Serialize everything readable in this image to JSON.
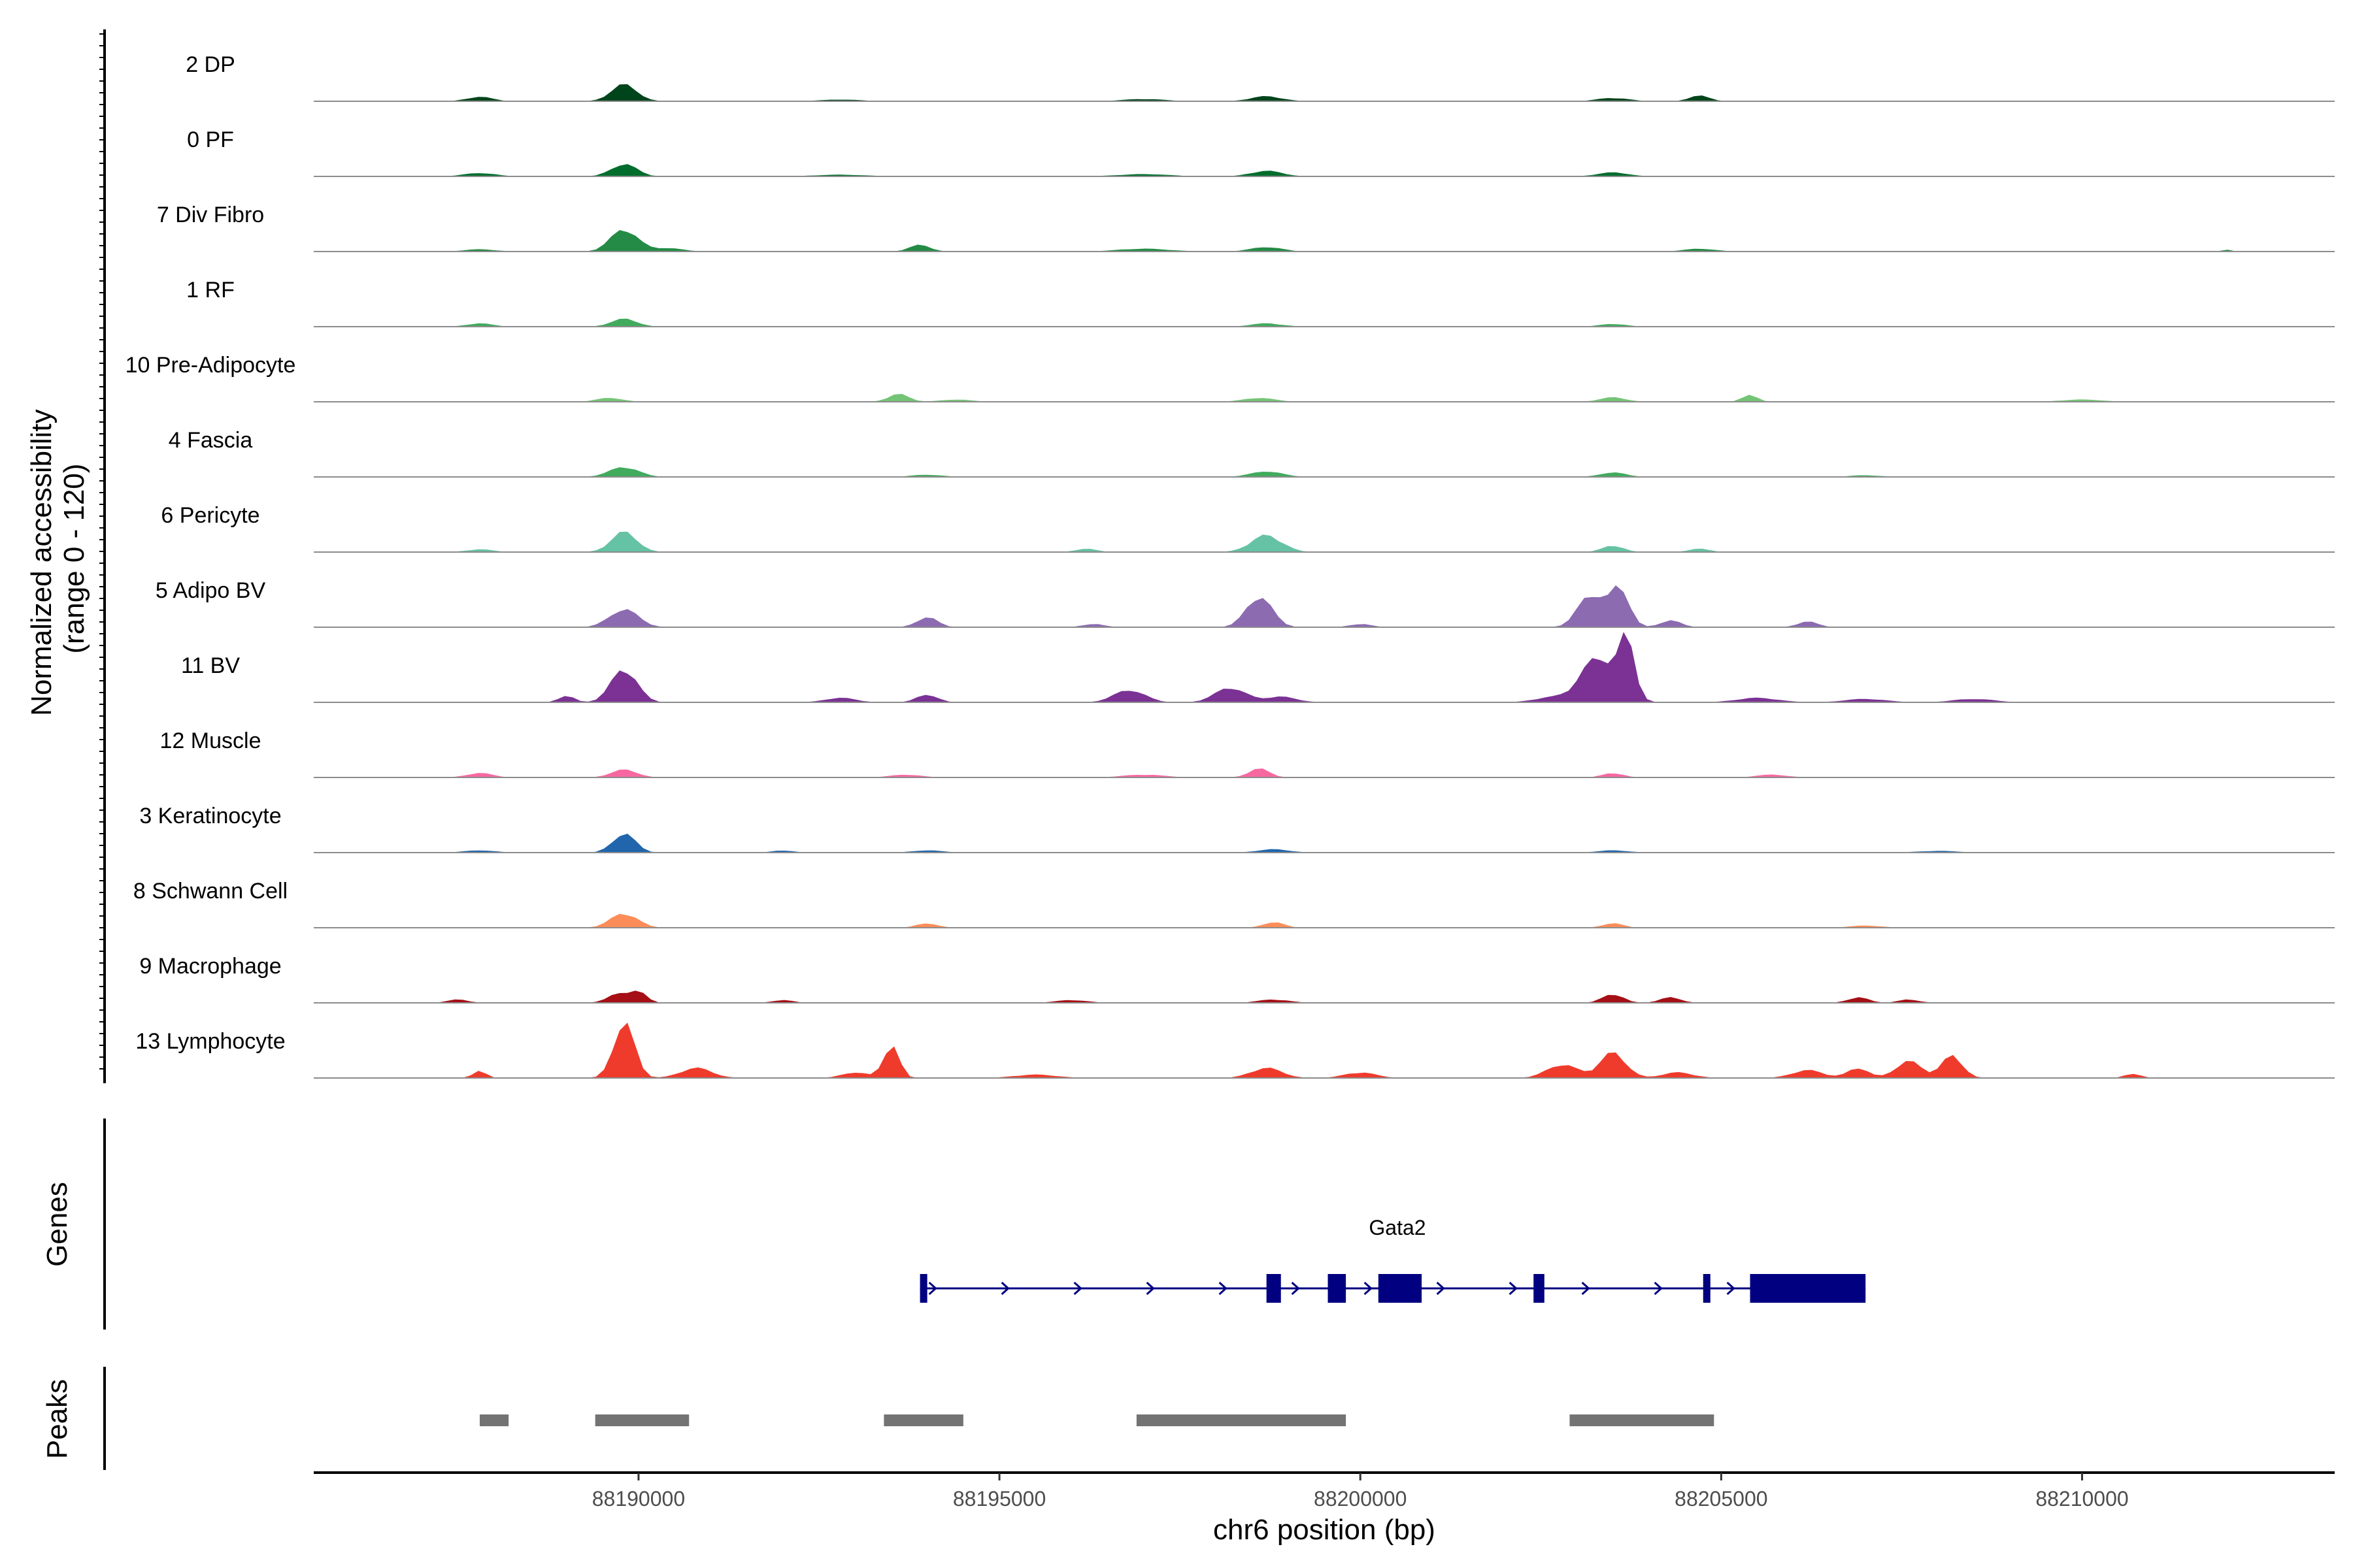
{
  "chart_data": {
    "type": "area",
    "title": "",
    "ylabel_line1": "Normalized accessibility",
    "ylabel_line2": "(range 0 - 120)",
    "ylim": [
      0,
      120
    ],
    "xlabel": "chr6 position (bp)",
    "xlim": [
      88185500,
      88213500
    ],
    "xticks": [
      88190000,
      88195000,
      88200000,
      88205000,
      88210000
    ],
    "xtick_labels": [
      "88190000",
      "88195000",
      "88200000",
      "88205000",
      "88210000"
    ],
    "tracks": [
      {
        "name": "2 DP",
        "color": "#00441b",
        "peaks": [
          [
            88187800,
            8,
            250
          ],
          [
            88189800,
            30,
            250
          ],
          [
            88192800,
            3,
            400
          ],
          [
            88197000,
            4,
            400
          ],
          [
            88198700,
            9,
            300
          ],
          [
            88203500,
            6,
            300
          ],
          [
            88204700,
            10,
            200
          ]
        ]
      },
      {
        "name": "0 PF",
        "color": "#006d2c",
        "peaks": [
          [
            88187800,
            6,
            300
          ],
          [
            88189800,
            22,
            250
          ],
          [
            88192800,
            3,
            500
          ],
          [
            88197000,
            4,
            500
          ],
          [
            88198700,
            10,
            300
          ],
          [
            88203500,
            7,
            300
          ]
        ]
      },
      {
        "name": "7 Div Fibro",
        "color": "#238b45",
        "peaks": [
          [
            88187800,
            4,
            300
          ],
          [
            88189800,
            40,
            260
          ],
          [
            88190400,
            6,
            300
          ],
          [
            88193900,
            12,
            200
          ],
          [
            88197000,
            5,
            500
          ],
          [
            88198700,
            8,
            300
          ],
          [
            88204700,
            5,
            300
          ],
          [
            88212000,
            3,
            100
          ]
        ]
      },
      {
        "name": "1 RF",
        "color": "#41ab5d",
        "peaks": [
          [
            88187800,
            6,
            250
          ],
          [
            88189800,
            14,
            250
          ],
          [
            88198700,
            6,
            300
          ],
          [
            88203500,
            5,
            250
          ]
        ]
      },
      {
        "name": "10 Pre-Adipocyte",
        "color": "#74c476",
        "peaks": [
          [
            88189600,
            7,
            250
          ],
          [
            88193600,
            14,
            200
          ],
          [
            88194400,
            4,
            300
          ],
          [
            88198600,
            7,
            300
          ],
          [
            88203500,
            8,
            250
          ],
          [
            88205400,
            12,
            150
          ],
          [
            88210000,
            4,
            400
          ]
        ]
      },
      {
        "name": "4 Fascia",
        "color": "#41ab5d",
        "peaks": [
          [
            88189800,
            18,
            280
          ],
          [
            88194000,
            4,
            300
          ],
          [
            88198700,
            10,
            300
          ],
          [
            88203500,
            8,
            250
          ],
          [
            88207000,
            3,
            300
          ]
        ]
      },
      {
        "name": "6 Pericyte",
        "color": "#66c2a4",
        "peaks": [
          [
            88187800,
            5,
            250
          ],
          [
            88189800,
            36,
            250
          ],
          [
            88196200,
            6,
            200
          ],
          [
            88198700,
            30,
            300
          ],
          [
            88203500,
            12,
            200
          ],
          [
            88204700,
            6,
            200
          ]
        ]
      },
      {
        "name": "5 Adipo BV",
        "color": "#8c6bb1",
        "peaks": [
          [
            88189800,
            32,
            280
          ],
          [
            88194000,
            18,
            200
          ],
          [
            88196300,
            6,
            200
          ],
          [
            88198600,
            55,
            250
          ],
          [
            88200000,
            6,
            200
          ],
          [
            88203200,
            60,
            250
          ],
          [
            88203600,
            70,
            180
          ],
          [
            88204300,
            12,
            200
          ],
          [
            88206200,
            10,
            200
          ]
        ]
      },
      {
        "name": "11 BV",
        "color": "#7b3294",
        "peaks": [
          [
            88189800,
            60,
            250
          ],
          [
            88189000,
            12,
            150
          ],
          [
            88192800,
            8,
            300
          ],
          [
            88194000,
            14,
            200
          ],
          [
            88196800,
            22,
            300
          ],
          [
            88198200,
            26,
            300
          ],
          [
            88198900,
            10,
            300
          ],
          [
            88202600,
            8,
            300
          ],
          [
            88203300,
            80,
            350
          ],
          [
            88203700,
            100,
            150
          ],
          [
            88205500,
            8,
            400
          ],
          [
            88207000,
            6,
            400
          ],
          [
            88208500,
            6,
            400
          ]
        ]
      },
      {
        "name": "12 Muscle",
        "color": "#f768a1",
        "peaks": [
          [
            88187800,
            8,
            250
          ],
          [
            88189800,
            14,
            250
          ],
          [
            88193700,
            5,
            300
          ],
          [
            88197000,
            5,
            400
          ],
          [
            88198600,
            16,
            200
          ],
          [
            88203500,
            8,
            200
          ],
          [
            88205700,
            5,
            300
          ]
        ]
      },
      {
        "name": "3 Keratinocyte",
        "color": "#2166ac",
        "peaks": [
          [
            88187800,
            4,
            300
          ],
          [
            88189800,
            34,
            220
          ],
          [
            88192000,
            4,
            200
          ],
          [
            88194000,
            4,
            300
          ],
          [
            88198800,
            6,
            300
          ],
          [
            88203500,
            4,
            300
          ],
          [
            88208000,
            3,
            400
          ]
        ]
      },
      {
        "name": "8 Schwann Cell",
        "color": "#fc8d59",
        "peaks": [
          [
            88189800,
            26,
            260
          ],
          [
            88194000,
            8,
            200
          ],
          [
            88198800,
            10,
            200
          ],
          [
            88203500,
            8,
            200
          ],
          [
            88207000,
            4,
            300
          ]
        ]
      },
      {
        "name": "9 Macrophage",
        "color": "#a50f15",
        "peaks": [
          [
            88187500,
            6,
            200
          ],
          [
            88189700,
            16,
            200
          ],
          [
            88190000,
            22,
            150
          ],
          [
            88192000,
            5,
            200
          ],
          [
            88196000,
            5,
            300
          ],
          [
            88198800,
            6,
            300
          ],
          [
            88203500,
            16,
            200
          ],
          [
            88204300,
            10,
            200
          ],
          [
            88206900,
            10,
            200
          ],
          [
            88207600,
            6,
            200
          ]
        ]
      },
      {
        "name": "13 Lymphocyte",
        "color": "#ef3b2c",
        "peaks": [
          [
            88187800,
            14,
            120
          ],
          [
            88189800,
            100,
            200
          ],
          [
            88190800,
            18,
            300
          ],
          [
            88193000,
            10,
            250
          ],
          [
            88193500,
            60,
            150
          ],
          [
            88195500,
            6,
            400
          ],
          [
            88198700,
            18,
            300
          ],
          [
            88200000,
            10,
            300
          ],
          [
            88202800,
            24,
            300
          ],
          [
            88203500,
            45,
            250
          ],
          [
            88204400,
            10,
            300
          ],
          [
            88206200,
            14,
            300
          ],
          [
            88206900,
            18,
            200
          ],
          [
            88207600,
            30,
            250
          ],
          [
            88208200,
            40,
            200
          ],
          [
            88210700,
            8,
            150
          ]
        ]
      }
    ],
    "genes_label": "Genes",
    "gene": {
      "name": "Gata2",
      "color": "#000080",
      "start": 88193900,
      "end": 88207000,
      "strand": "+",
      "exons": [
        [
          88193900,
          88194000
        ],
        [
          88198700,
          88198900
        ],
        [
          88199550,
          88199800
        ],
        [
          88200250,
          88200850
        ],
        [
          88202400,
          88202550
        ],
        [
          88204750,
          88204850
        ],
        [
          88205400,
          88207000
        ]
      ]
    },
    "peaks_label": "Peaks",
    "peak_color": "#737373",
    "peak_regions": [
      [
        88187800,
        88188200
      ],
      [
        88189400,
        88190700
      ],
      [
        88193400,
        88194500
      ],
      [
        88196900,
        88199800
      ],
      [
        88202900,
        88204900
      ]
    ]
  }
}
